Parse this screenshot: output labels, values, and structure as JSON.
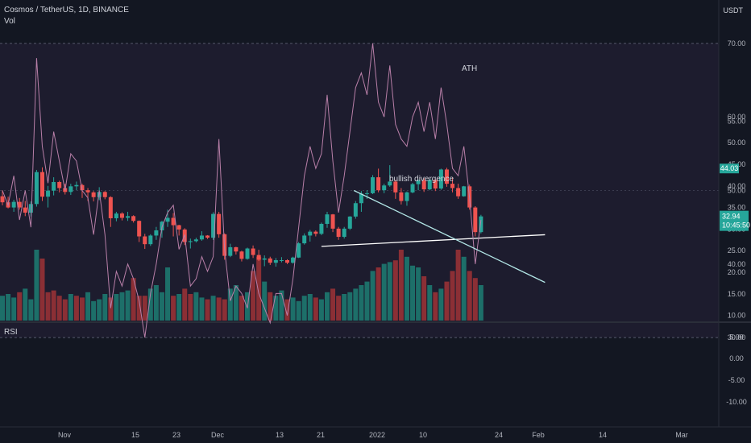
{
  "header": {
    "symbol_line": "Cosmos / TetherUS, 1D, BINANCE",
    "volume_label": "Vol",
    "currency": "USDT"
  },
  "rsi_panel": {
    "label": "RSI"
  },
  "colors": {
    "background": "#131722",
    "up": "#26a69a",
    "down": "#ef5350",
    "rsi_line": "#b87fa8",
    "ath_line": "#4a5a8a",
    "trendline": "#ffffff"
  },
  "price_axis": {
    "ticks": [
      "55.00",
      "50.00",
      "45.00",
      "40.00",
      "35.00",
      "30.00",
      "25.00",
      "20.00",
      "15.00",
      "10.00",
      "5.00",
      "0.00",
      "-5.00",
      "-10.00"
    ]
  },
  "rsi_axis": {
    "ticks": [
      "70.00",
      "60.00",
      "50.00",
      "40.00",
      "30.00"
    ]
  },
  "time_axis": {
    "ticks": [
      "Nov",
      "15",
      "23",
      "Dec",
      "13",
      "21",
      "2022",
      "10",
      "24",
      "Feb",
      "14",
      "Mar"
    ]
  },
  "price_badges": {
    "ath": "44.03",
    "last": "32.94",
    "countdown": "10:45:50"
  },
  "annotations": {
    "ath": "ATH",
    "divergence": "bullish divergence"
  },
  "chart_data": {
    "type": "candlestick",
    "ath_level": 44.03,
    "candles": [
      [
        37.6,
        39.0,
        35.5,
        36.2
      ],
      [
        36.2,
        37.5,
        34.8,
        35.0
      ],
      [
        35.0,
        36.8,
        34.0,
        36.3
      ],
      [
        36.3,
        37.2,
        34.5,
        35.0
      ],
      [
        35.0,
        36.5,
        33.0,
        33.8
      ],
      [
        33.8,
        36.4,
        32.9,
        35.8
      ],
      [
        35.8,
        43.7,
        35.2,
        43.2
      ],
      [
        43.2,
        44.3,
        36.5,
        37.5
      ],
      [
        37.5,
        40.0,
        35.0,
        38.9
      ],
      [
        38.9,
        42.0,
        37.8,
        40.9
      ],
      [
        40.9,
        41.2,
        38.5,
        39.5
      ],
      [
        39.5,
        40.5,
        38.0,
        38.6
      ],
      [
        38.6,
        40.5,
        37.9,
        39.9
      ],
      [
        39.9,
        41.0,
        39.0,
        40.2
      ],
      [
        40.2,
        40.5,
        37.2,
        39.0
      ],
      [
        39.0,
        39.5,
        36.5,
        38.5
      ],
      [
        38.5,
        38.8,
        36.4,
        37.4
      ],
      [
        37.4,
        39.7,
        36.7,
        38.6
      ],
      [
        38.6,
        38.8,
        36.9,
        37.4
      ],
      [
        37.4,
        37.6,
        30.5,
        32.5
      ],
      [
        32.5,
        34.0,
        31.8,
        33.6
      ],
      [
        33.6,
        33.9,
        32.0,
        32.6
      ],
      [
        32.6,
        34.0,
        31.9,
        33.0
      ],
      [
        33.0,
        33.2,
        31.5,
        31.9
      ],
      [
        31.9,
        32.0,
        27.0,
        28.3
      ],
      [
        28.3,
        28.9,
        25.4,
        26.5
      ],
      [
        26.5,
        28.8,
        26.1,
        28.5
      ],
      [
        28.5,
        30.5,
        27.5,
        29.7
      ],
      [
        29.7,
        31.9,
        28.0,
        31.7
      ],
      [
        31.7,
        34.5,
        30.5,
        32.6
      ],
      [
        32.6,
        33.7,
        28.3,
        30.9
      ],
      [
        30.9,
        31.0,
        28.5,
        29.9
      ],
      [
        29.9,
        30.2,
        26.3,
        27.0
      ],
      [
        27.0,
        27.8,
        25.5,
        27.2
      ],
      [
        27.2,
        28.0,
        26.9,
        27.6
      ],
      [
        27.6,
        29.5,
        27.3,
        28.5
      ],
      [
        28.5,
        28.6,
        27.7,
        28.0
      ],
      [
        28.0,
        33.9,
        27.5,
        33.5
      ],
      [
        33.5,
        34.0,
        28.0,
        28.8
      ],
      [
        28.8,
        29.0,
        22.9,
        23.8
      ],
      [
        23.8,
        26.6,
        23.5,
        25.8
      ],
      [
        25.8,
        25.9,
        24.1,
        24.8
      ],
      [
        24.8,
        25.0,
        22.5,
        23.1
      ],
      [
        23.1,
        25.7,
        22.9,
        25.5
      ],
      [
        25.5,
        26.2,
        23.3,
        24.0
      ],
      [
        24.0,
        25.2,
        22.6,
        22.9
      ],
      [
        22.9,
        23.9,
        21.4,
        23.2
      ],
      [
        23.2,
        23.6,
        21.7,
        22.2
      ],
      [
        22.2,
        23.3,
        21.3,
        22.8
      ],
      [
        22.8,
        23.5,
        22.3,
        22.8
      ],
      [
        22.8,
        23.0,
        21.9,
        22.2
      ],
      [
        22.2,
        23.6,
        22.0,
        23.4
      ],
      [
        23.4,
        27.0,
        23.3,
        26.7
      ],
      [
        26.7,
        29.0,
        26.4,
        28.5
      ],
      [
        28.5,
        29.8,
        27.1,
        29.4
      ],
      [
        29.4,
        29.7,
        28.3,
        28.9
      ],
      [
        28.9,
        31.5,
        28.6,
        31.2
      ],
      [
        31.2,
        34.0,
        30.3,
        33.4
      ],
      [
        33.4,
        33.5,
        29.3,
        30.1
      ],
      [
        30.1,
        30.5,
        27.5,
        28.2
      ],
      [
        28.2,
        30.5,
        27.8,
        30.1
      ],
      [
        30.1,
        33.0,
        29.8,
        32.9
      ],
      [
        32.9,
        36.5,
        32.4,
        36.0
      ],
      [
        36.0,
        38.8,
        34.0,
        38.2
      ],
      [
        38.2,
        39.0,
        37.0,
        38.3
      ],
      [
        38.3,
        42.5,
        38.1,
        42.0
      ],
      [
        42.0,
        44.0,
        38.5,
        39.0
      ],
      [
        39.0,
        40.5,
        38.3,
        40.1
      ],
      [
        40.1,
        44.8,
        39.8,
        41.0
      ],
      [
        41.0,
        41.4,
        37.0,
        38.5
      ],
      [
        38.5,
        39.5,
        35.7,
        36.5
      ],
      [
        36.5,
        38.7,
        35.4,
        38.5
      ],
      [
        38.5,
        40.7,
        38.3,
        40.4
      ],
      [
        40.4,
        41.5,
        39.0,
        41.3
      ],
      [
        41.3,
        41.8,
        38.6,
        39.2
      ],
      [
        39.2,
        41.5,
        39.0,
        41.4
      ],
      [
        41.4,
        41.5,
        38.8,
        39.4
      ],
      [
        39.4,
        44.0,
        39.1,
        43.8
      ],
      [
        43.8,
        44.2,
        39.8,
        40.5
      ],
      [
        40.5,
        42.0,
        38.5,
        39.5
      ],
      [
        39.5,
        40.5,
        37.0,
        37.6
      ],
      [
        37.6,
        40.0,
        37.5,
        39.9
      ],
      [
        39.9,
        40.3,
        34.5,
        35.0
      ],
      [
        35.0,
        35.3,
        28.3,
        29.3
      ],
      [
        29.3,
        33.3,
        29.0,
        32.94
      ]
    ],
    "volume_shape": [
      "up",
      "up",
      "up",
      "down",
      "up",
      "up",
      "up",
      "down",
      "down",
      "down",
      "down",
      "down",
      "up",
      "down",
      "down",
      "up",
      "up",
      "up",
      "up",
      "down",
      "up",
      "up",
      "up",
      "down",
      "down",
      "down",
      "up",
      "up",
      "up",
      "up",
      "down",
      "up",
      "down",
      "down",
      "up",
      "up",
      "down",
      "up",
      "down",
      "down",
      "up",
      "up",
      "down",
      "up",
      "down",
      "down",
      "up",
      "down",
      "up",
      "up",
      "down",
      "up",
      "up",
      "up",
      "up",
      "down",
      "up",
      "up",
      "down",
      "down",
      "up",
      "up",
      "up",
      "up",
      "up",
      "up",
      "down",
      "up",
      "up",
      "down",
      "down",
      "up",
      "up",
      "up",
      "down",
      "up",
      "down",
      "up",
      "down",
      "down",
      "down",
      "up",
      "down",
      "down",
      "up"
    ],
    "volume": [
      14,
      15,
      13,
      16,
      18,
      12,
      40,
      35,
      16,
      17,
      14,
      12,
      15,
      14,
      13,
      16,
      11,
      12,
      15,
      13,
      15,
      16,
      17,
      24,
      14,
      14,
      18,
      20,
      16,
      30,
      14,
      15,
      18,
      15,
      16,
      13,
      12,
      14,
      13,
      12,
      18,
      20,
      14,
      16,
      28,
      36,
      22,
      16,
      14,
      17,
      12,
      13,
      11,
      14,
      15,
      13,
      12,
      16,
      18,
      14,
      15,
      16,
      18,
      20,
      22,
      28,
      30,
      32,
      33,
      34,
      40,
      36,
      31,
      30,
      25,
      20,
      16,
      18,
      22,
      28,
      40,
      36,
      28,
      24,
      20
    ],
    "rsi": [
      50,
      48,
      52,
      46,
      50,
      45,
      68,
      56,
      51,
      58,
      54,
      50,
      55,
      54,
      50,
      49,
      44,
      50,
      44,
      34,
      39,
      37,
      40,
      38,
      35,
      30,
      36,
      40,
      45,
      47,
      48,
      42,
      44,
      37,
      38,
      41,
      39,
      41,
      57,
      42,
      35,
      37,
      36,
      34,
      40,
      36,
      34,
      32,
      36,
      36,
      33,
      38,
      45,
      52,
      56,
      53,
      55,
      63,
      54,
      47,
      52,
      58,
      64,
      66,
      63,
      70,
      62,
      60,
      67,
      59,
      57,
      56,
      60,
      62,
      58,
      62,
      57,
      64,
      59,
      53,
      52,
      56,
      49,
      40,
      46
    ],
    "divergence_price": {
      "from": [
        56,
        26.0
      ],
      "to": [
        91,
        28.5
      ]
    },
    "divergence_rsi": {
      "from": [
        60,
        50.0
      ],
      "to": [
        91,
        37.5
      ]
    },
    "price_range": [
      -10,
      60
    ],
    "rsi_range": [
      28,
      75
    ]
  }
}
